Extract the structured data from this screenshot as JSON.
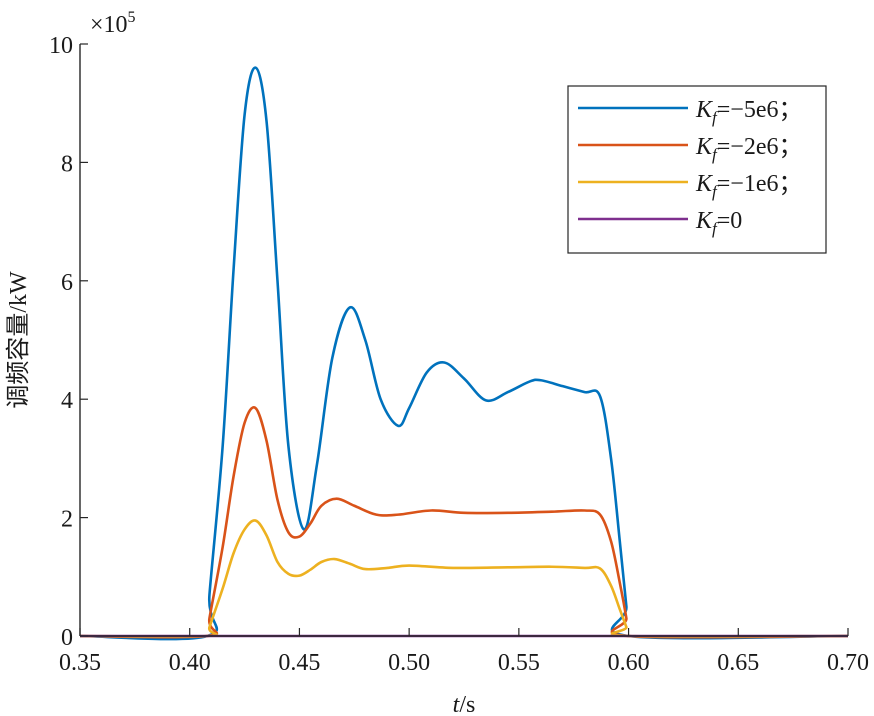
{
  "chart_data": {
    "type": "line",
    "xlabel_italic": "t",
    "xlabel_unit": "/s",
    "ylabel": "调频容量/kW",
    "y_exponent_label": "×10",
    "y_exponent_power": "5",
    "xlim": [
      0.35,
      0.7
    ],
    "ylim": [
      0,
      10
    ],
    "x_ticks": [
      0.35,
      0.4,
      0.45,
      0.5,
      0.55,
      0.6,
      0.65,
      0.7
    ],
    "x_tick_labels": [
      "0.35",
      "0.40",
      "0.45",
      "0.50",
      "0.55",
      "0.60",
      "0.65",
      "0.70"
    ],
    "y_ticks": [
      0,
      2,
      4,
      6,
      8,
      10
    ],
    "y_tick_labels": [
      "0",
      "2",
      "4",
      "6",
      "8",
      "10"
    ],
    "grid": false,
    "legend_position": "top-right",
    "series": [
      {
        "name_italic": "K",
        "name_sub": "f",
        "name_rest": "=−5e6；",
        "color": "#0072BD",
        "x": [
          0.35,
          0.408,
          0.409,
          0.415,
          0.42,
          0.425,
          0.43,
          0.435,
          0.44,
          0.445,
          0.452,
          0.458,
          0.465,
          0.473,
          0.48,
          0.487,
          0.495,
          0.5,
          0.508,
          0.516,
          0.525,
          0.535,
          0.545,
          0.555,
          0.56,
          0.57,
          0.58,
          0.587,
          0.592,
          0.596,
          0.599,
          0.6,
          0.7
        ],
        "y": [
          0,
          0,
          0.7,
          3.2,
          6.2,
          8.8,
          9.6,
          8.7,
          6.0,
          3.2,
          1.8,
          2.9,
          4.7,
          5.55,
          5.0,
          4.0,
          3.55,
          3.85,
          4.45,
          4.62,
          4.35,
          3.98,
          4.12,
          4.3,
          4.32,
          4.22,
          4.12,
          4.05,
          3.0,
          1.6,
          0.5,
          0,
          0
        ]
      },
      {
        "name_italic": "K",
        "name_sub": "f",
        "name_rest": "=−2e6；",
        "color": "#D95319",
        "x": [
          0.35,
          0.408,
          0.409,
          0.415,
          0.42,
          0.425,
          0.43,
          0.435,
          0.44,
          0.445,
          0.45,
          0.455,
          0.46,
          0.467,
          0.475,
          0.485,
          0.495,
          0.51,
          0.525,
          0.545,
          0.565,
          0.58,
          0.587,
          0.592,
          0.596,
          0.599,
          0.6,
          0.7
        ],
        "y": [
          0,
          0,
          0.3,
          1.5,
          2.7,
          3.6,
          3.85,
          3.3,
          2.3,
          1.75,
          1.68,
          1.9,
          2.2,
          2.32,
          2.2,
          2.05,
          2.05,
          2.12,
          2.08,
          2.08,
          2.1,
          2.12,
          2.05,
          1.6,
          0.9,
          0.3,
          0,
          0
        ]
      },
      {
        "name_italic": "K",
        "name_sub": "f",
        "name_rest": "=−1e6；",
        "color": "#EDB120",
        "x": [
          0.35,
          0.408,
          0.409,
          0.415,
          0.42,
          0.425,
          0.43,
          0.435,
          0.44,
          0.445,
          0.45,
          0.455,
          0.46,
          0.466,
          0.473,
          0.48,
          0.49,
          0.5,
          0.52,
          0.545,
          0.565,
          0.58,
          0.587,
          0.592,
          0.596,
          0.599,
          0.6,
          0.7
        ],
        "y": [
          0,
          0,
          0.15,
          0.8,
          1.4,
          1.8,
          1.95,
          1.7,
          1.25,
          1.05,
          1.02,
          1.12,
          1.25,
          1.3,
          1.22,
          1.13,
          1.15,
          1.19,
          1.15,
          1.16,
          1.17,
          1.15,
          1.14,
          0.85,
          0.45,
          0.15,
          0,
          0
        ]
      },
      {
        "name_italic": "K",
        "name_sub": "f",
        "name_rest": "=0",
        "color": "#7E2F8E",
        "x": [
          0.35,
          0.7
        ],
        "y": [
          0,
          0
        ]
      }
    ]
  }
}
